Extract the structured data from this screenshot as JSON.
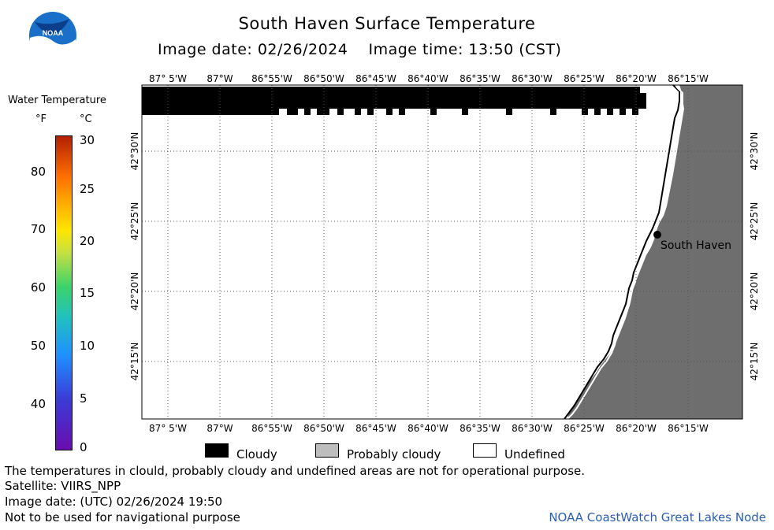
{
  "title": "South Haven Surface Temperature",
  "image_date_line": "Image date: 02/26/2024    Image time: 13:50 (CST)",
  "logo": {
    "icon": "noaa-logo-icon",
    "text": "NOAA"
  },
  "legend": {
    "title": "Water Temperature",
    "unit_f": "°F",
    "unit_c": "°C",
    "f_ticks": [
      "80",
      "70",
      "60",
      "50",
      "40"
    ],
    "c_ticks": [
      "30",
      "25",
      "20",
      "15",
      "10",
      "5",
      "0"
    ]
  },
  "map": {
    "lon_labels": [
      "87° 5'W",
      "87°W",
      "86°55'W",
      "86°50'W",
      "86°45'W",
      "86°40'W",
      "86°35'W",
      "86°30'W",
      "86°25'W",
      "86°20'W",
      "86°15'W"
    ],
    "lat_labels": [
      "42°30'N",
      "42°25'N",
      "42°20'N",
      "42°15'N"
    ],
    "city": "South Haven",
    "colors": {
      "cloudy": "#000000",
      "land": "#6e6e6e",
      "undefined": "#ffffff",
      "grid": "#444444"
    }
  },
  "key": {
    "cloudy": "Cloudy",
    "probably_cloudy": "Probably cloudy",
    "undefined": "Undefined"
  },
  "footer": {
    "note": "The temperatures in clould, probably cloudy and undefined areas are not for operational purpose.",
    "satellite": "Satellite: VIIRS_NPP",
    "utc_date": "Image date: (UTC) 02/26/2024  19:50",
    "nav_warning": "Not to be used for navigational purpose",
    "credit": "NOAA CoastWatch Great Lakes Node"
  }
}
